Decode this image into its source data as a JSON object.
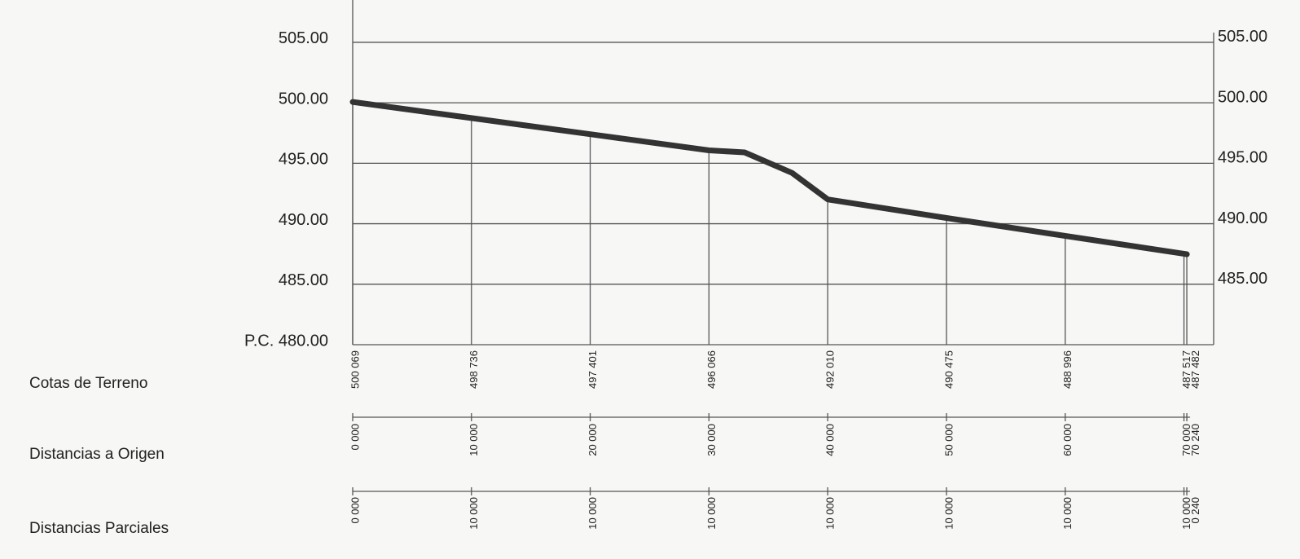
{
  "chart_data": {
    "type": "line",
    "row_labels": [
      "Cotas de Terreno",
      "Distancias a Origen",
      "Distancias Parciales"
    ],
    "ylim": [
      480,
      508.5
    ],
    "yticks": [
      {
        "value": 480,
        "label": "P.C. 480.00"
      },
      {
        "value": 485,
        "label": "485.00"
      },
      {
        "value": 490,
        "label": "490.00"
      },
      {
        "value": 495,
        "label": "495.00"
      },
      {
        "value": 500,
        "label": "500.00"
      },
      {
        "value": 505,
        "label": "505.00"
      }
    ],
    "y2ticks": [
      {
        "value": 485,
        "label": "485.00"
      },
      {
        "value": 490,
        "label": "490.00"
      },
      {
        "value": 495,
        "label": "495.00"
      },
      {
        "value": 500,
        "label": "500.00"
      },
      {
        "value": 505,
        "label": "505.00"
      }
    ],
    "xlim": [
      0,
      72.5
    ],
    "grid": true,
    "series": [
      {
        "color": "#333333",
        "x": [
          0,
          10,
          20,
          30,
          33,
          37,
          40,
          50,
          60,
          70,
          70.24
        ],
        "x_labels": [
          "0 000",
          "10 000",
          "20 000",
          "30 000",
          null,
          null,
          "40 000",
          "50 000",
          "60 000",
          "70 000",
          "70 240"
        ],
        "values": [
          500.069,
          498.736,
          497.401,
          496.066,
          495.9,
          494.2,
          492.01,
          490.475,
          488.996,
          487.517,
          487.482
        ],
        "value_labels": [
          "500 069",
          "498 736",
          "497 401",
          "496 066",
          null,
          null,
          "492 010",
          "490 475",
          "488 996",
          "487 517",
          "487 482"
        ],
        "partial": [
          0,
          10,
          10,
          10,
          null,
          null,
          10,
          10,
          10,
          10,
          0.24
        ],
        "partial_labels": [
          "0 000",
          "10 000",
          "10 000",
          "10 000",
          null,
          null,
          "10 000",
          "10 000",
          "10 000",
          "10 000",
          "0 240"
        ]
      }
    ]
  }
}
